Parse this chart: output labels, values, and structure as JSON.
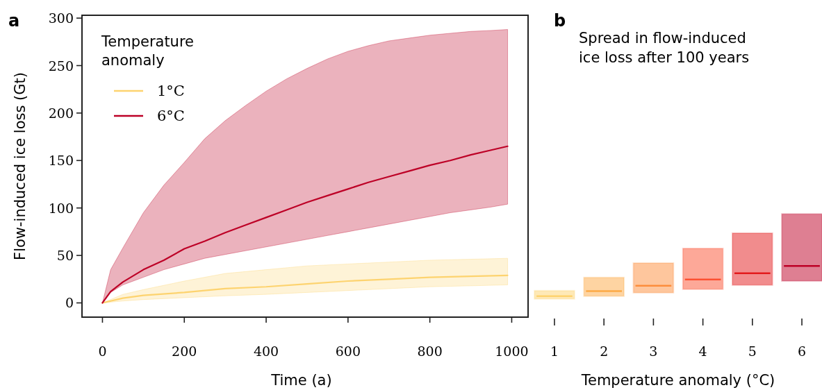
{
  "chart_data": [
    {
      "type": "line",
      "title": "a",
      "xlabel": "Time (a)",
      "ylabel": "Flow-induced ice loss (Gt)",
      "legend_title": "Temperature anomaly",
      "legend": "top left",
      "xlim": [
        -50,
        1040
      ],
      "ylim": [
        -15,
        303
      ],
      "xticks": [
        0,
        200,
        400,
        600,
        800,
        1000
      ],
      "yticks": [
        0,
        50,
        100,
        150,
        200,
        250,
        300
      ],
      "grid": false,
      "series": [
        {
          "name": "1°C",
          "color": "#fdd36f",
          "x": [
            0,
            50,
            100,
            200,
            300,
            400,
            500,
            600,
            700,
            800,
            900,
            990
          ],
          "values": [
            0,
            5,
            8,
            11,
            15,
            17,
            20,
            23,
            25,
            27,
            28,
            29
          ],
          "upper": [
            0,
            9,
            14,
            23,
            31,
            35,
            39,
            41,
            43,
            45,
            46,
            47
          ],
          "lower": [
            0,
            2,
            3.5,
            5.5,
            7.5,
            9,
            11,
            13,
            15,
            17,
            18,
            19
          ]
        },
        {
          "name": "6°C",
          "color": "#bd0026",
          "x": [
            0,
            20,
            50,
            100,
            150,
            200,
            250,
            300,
            350,
            400,
            450,
            500,
            550,
            600,
            650,
            700,
            750,
            800,
            850,
            900,
            950,
            990
          ],
          "values": [
            0,
            12,
            22,
            35,
            45,
            57,
            65,
            74,
            82,
            90,
            98,
            106,
            113,
            120,
            127,
            133,
            139,
            145,
            150,
            156,
            161,
            165
          ],
          "upper": [
            0,
            35,
            58,
            95,
            124,
            148,
            173,
            192,
            208,
            223,
            236,
            247,
            257,
            265,
            271,
            276,
            279,
            282,
            284,
            286,
            287,
            288
          ],
          "lower": [
            0,
            11,
            19,
            27,
            35,
            41,
            47,
            51,
            55,
            59,
            63,
            67,
            71,
            75,
            79,
            83,
            87,
            91,
            95,
            98,
            101,
            104
          ]
        }
      ]
    },
    {
      "type": "box",
      "title": "b",
      "subtitle": "Spread in flow-induced ice loss after 100 years",
      "xlabel": "Temperature anomaly (°C)",
      "categories": [
        "1",
        "2",
        "3",
        "4",
        "5",
        "6"
      ],
      "ylim": [
        -15,
        303
      ],
      "tick_labels": "x",
      "colors": [
        "#fdd36f",
        "#fdaa45",
        "#fd8d3c",
        "#fc5132",
        "#e31a1c",
        "#bd0026"
      ],
      "boxes": [
        {
          "low": 4.2,
          "q1": 4.2,
          "median": 7.1,
          "q3": 12.9,
          "high": 12.9
        },
        {
          "low": 7.1,
          "q1": 7.1,
          "median": 12.4,
          "q3": 26.8,
          "high": 26.8
        },
        {
          "low": 10.7,
          "q1": 10.7,
          "median": 18,
          "q3": 42,
          "high": 42
        },
        {
          "low": 14.4,
          "q1": 14.4,
          "median": 24.6,
          "q3": 57.4,
          "high": 57.4
        },
        {
          "low": 18.8,
          "q1": 18.8,
          "median": 31.2,
          "q3": 73.5,
          "high": 73.5
        },
        {
          "low": 23.1,
          "q1": 23.1,
          "median": 38.9,
          "q3": 93.7,
          "high": 93.7
        }
      ]
    }
  ]
}
